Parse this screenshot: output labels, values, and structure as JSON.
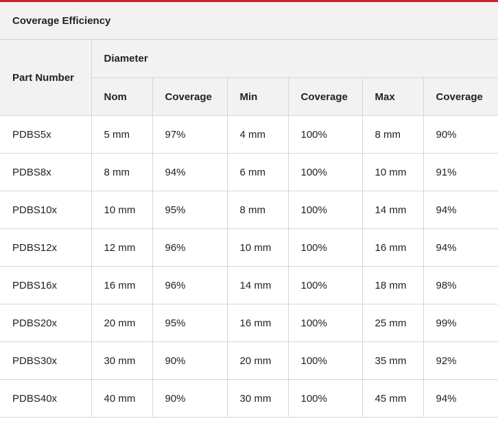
{
  "title": "Coverage Efficiency",
  "header": {
    "part_number": "Part Number",
    "group": "Diameter",
    "columns": [
      "Nom",
      "Coverage",
      "Min",
      "Coverage",
      "Max",
      "Coverage"
    ]
  },
  "accent_color": "#d0202a",
  "rows": [
    [
      "PDBS5x",
      "5 mm",
      "97%",
      "4 mm",
      "100%",
      "8 mm",
      "90%"
    ],
    [
      "PDBS8x",
      "8 mm",
      "94%",
      "6 mm",
      "100%",
      "10 mm",
      "91%"
    ],
    [
      "PDBS10x",
      "10 mm",
      "95%",
      "8 mm",
      "100%",
      "14 mm",
      "94%"
    ],
    [
      "PDBS12x",
      "12 mm",
      "96%",
      "10 mm",
      "100%",
      "16 mm",
      "94%"
    ],
    [
      "PDBS16x",
      "16 mm",
      "96%",
      "14 mm",
      "100%",
      "18 mm",
      "98%"
    ],
    [
      "PDBS20x",
      "20 mm",
      "95%",
      "16 mm",
      "100%",
      "25 mm",
      "99%"
    ],
    [
      "PDBS30x",
      "30 mm",
      "90%",
      "20 mm",
      "100%",
      "35 mm",
      "92%"
    ],
    [
      "PDBS40x",
      "40 mm",
      "90%",
      "30 mm",
      "100%",
      "45 mm",
      "94%"
    ]
  ]
}
